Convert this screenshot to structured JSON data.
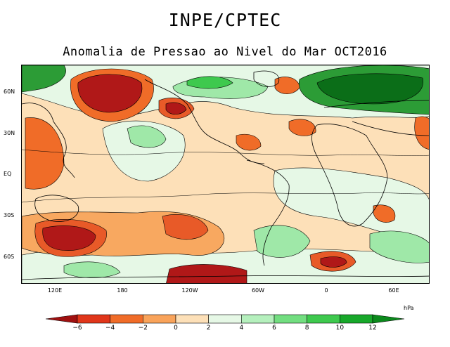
{
  "title": "INPE/CPTEC",
  "subtitle": "Anomalia de Pressao ao Nivel do Mar OCT2016",
  "latitude_labels": [
    "60N",
    "30N",
    "EQ",
    "30S",
    "60S"
  ],
  "longitude_labels": [
    "120E",
    "180",
    "120W",
    "60W",
    "0",
    "60E"
  ],
  "colorbar": {
    "unit": "hPa",
    "ticks": [
      "−6",
      "−4",
      "−2",
      "0",
      "2",
      "4",
      "6",
      "8",
      "10",
      "12"
    ],
    "colors": [
      "#a01010",
      "#e0361a",
      "#f06c28",
      "#f9a35a",
      "#fde0b8",
      "#e6f8e6",
      "#b5f0bd",
      "#72de80",
      "#3ec94e",
      "#17a82a",
      "#0b8a1c"
    ]
  },
  "colors": {
    "strong_negative": "#b01818",
    "negative": "#e85a28",
    "weak_negative": "#f8a860",
    "neutral": "#fde0b8",
    "weak_positive": "#e6f8e6",
    "positive": "#9fe8a8",
    "strong_positive": "#1a8a2a",
    "very_strong_positive": "#0b6e18"
  }
}
